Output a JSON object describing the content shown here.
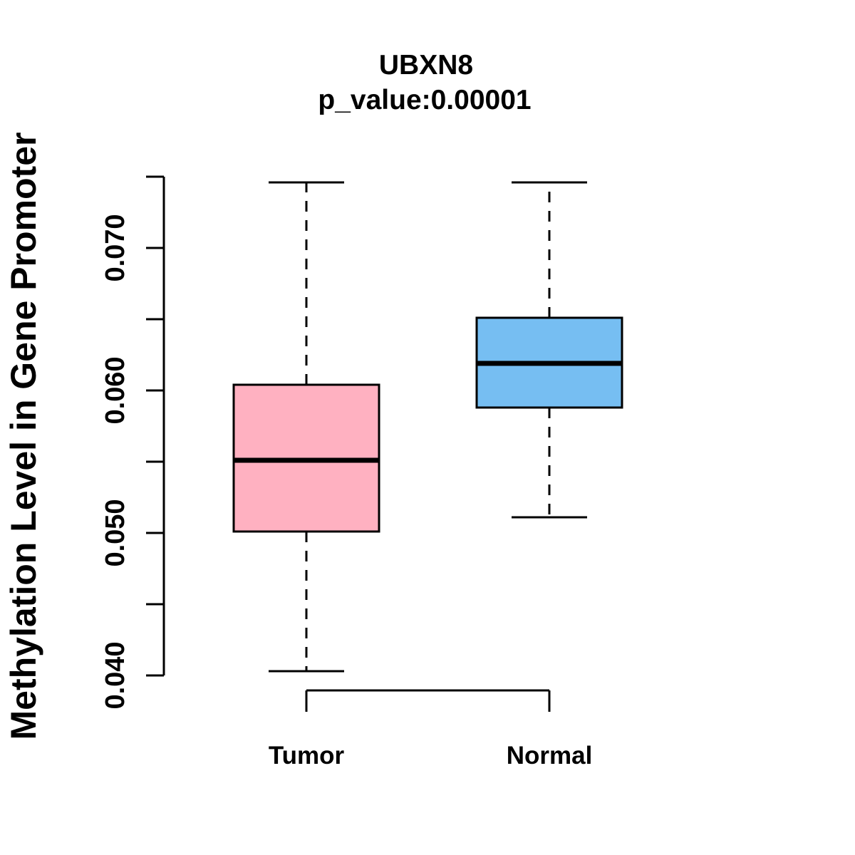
{
  "figure": {
    "background_color": "#FFFFFF",
    "line_color": "#000000"
  },
  "chart_data": {
    "type": "boxplot",
    "title": "UBXN8",
    "subtitle": "p_value:0.00001",
    "ylabel": "Methylation Level in Gene Promoter",
    "xlabel": "",
    "grid": false,
    "legend": null,
    "categories": [
      "Tumor",
      "Normal"
    ],
    "series": [
      {
        "name": "Tumor",
        "fill_color": "#FFB1C1",
        "whisker_low": 0.0403,
        "q1": 0.0501,
        "median": 0.0551,
        "q3": 0.0604,
        "whisker_high": 0.0746
      },
      {
        "name": "Normal",
        "fill_color": "#76BEF2",
        "whisker_low": 0.0511,
        "q1": 0.0588,
        "median": 0.0619,
        "q3": 0.0651,
        "whisker_high": 0.0746
      }
    ],
    "y_axis": {
      "range": [
        0.04,
        0.075
      ],
      "ticks": [
        {
          "value": 0.04,
          "label": "0.040"
        },
        {
          "value": 0.045,
          "label": ""
        },
        {
          "value": 0.05,
          "label": "0.050"
        },
        {
          "value": 0.055,
          "label": ""
        },
        {
          "value": 0.06,
          "label": "0.060"
        },
        {
          "value": 0.065,
          "label": ""
        },
        {
          "value": 0.07,
          "label": "0.070"
        },
        {
          "value": 0.075,
          "label": ""
        }
      ]
    }
  }
}
